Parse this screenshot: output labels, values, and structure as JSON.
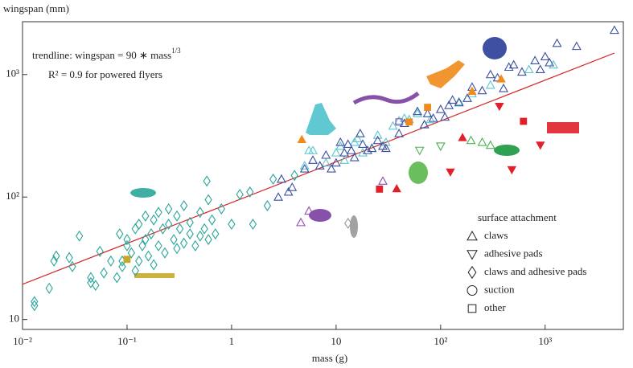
{
  "chart_data": {
    "type": "scatter",
    "y_label": "wingspan (mm)",
    "x_label": "mass (g)",
    "log_x": true,
    "log_y": true,
    "xlim": [
      0.01,
      5600
    ],
    "ylim": [
      8.3,
      2700
    ],
    "xticks": [
      {
        "value": 0.01,
        "label": "10⁻²"
      },
      {
        "value": 0.1,
        "label": "10⁻¹"
      },
      1,
      10,
      {
        "value": 100,
        "label": "10²"
      },
      {
        "value": 1000,
        "label": "10³"
      }
    ],
    "yticks": [
      10,
      {
        "value": 100,
        "label": "10²"
      },
      {
        "value": 1000,
        "label": "10³"
      }
    ],
    "trendline_label": "trendline: wingspan = 90 ∗ mass",
    "trendline_exponent": "1/3",
    "r2_label": "R² = 0.9 for powered flyers",
    "trendline": {
      "color": "#d62728",
      "x": [
        0.01,
        4600
      ],
      "values": [
        19.4,
        1497
      ]
    },
    "legend": {
      "title": "surface attachment",
      "entries": [
        {
          "label": "claws",
          "marker": "triangle"
        },
        {
          "label": "adhesive pads",
          "marker": "triangle-down"
        },
        {
          "label": "claws and adhesive pads",
          "marker": "diamond"
        },
        {
          "label": "suction",
          "marker": "circle"
        },
        {
          "label": "other",
          "marker": "square"
        }
      ]
    },
    "series": [
      {
        "marker": "diamond",
        "color": "#2aa59a",
        "filled": false,
        "x": [
          0.013,
          0.013,
          0.018,
          0.02,
          0.021,
          0.028,
          0.03,
          0.035,
          0.045,
          0.045,
          0.05,
          0.055,
          0.06,
          0.07,
          0.08,
          0.085,
          0.09,
          0.09,
          0.1,
          0.1,
          0.11,
          0.12,
          0.12,
          0.13,
          0.13,
          0.14,
          0.15,
          0.15,
          0.16,
          0.17,
          0.18,
          0.18,
          0.2,
          0.2,
          0.22,
          0.23,
          0.25,
          0.25,
          0.28,
          0.3,
          0.3,
          0.32,
          0.35,
          0.35,
          0.4,
          0.4,
          0.45,
          0.5,
          0.5,
          0.55,
          0.6,
          0.6,
          0.65,
          0.7,
          0.58,
          0.8,
          1,
          1.2,
          1.5,
          1.6,
          2.2,
          2.5,
          4
        ],
        "values": [
          13,
          14,
          18,
          30,
          33,
          32,
          27,
          48,
          20,
          22,
          19,
          36,
          24,
          30,
          22,
          50,
          27,
          30,
          40,
          45,
          35,
          25,
          55,
          30,
          60,
          40,
          45,
          70,
          33,
          50,
          28,
          65,
          40,
          75,
          55,
          35,
          60,
          80,
          45,
          38,
          70,
          55,
          42,
          85,
          50,
          62,
          40,
          48,
          75,
          55,
          45,
          95,
          65,
          50,
          135,
          80,
          60,
          105,
          110,
          60,
          85,
          140,
          150
        ]
      },
      {
        "marker": "triangle",
        "color": "#5cc8d0",
        "filled": false,
        "x": [
          5,
          5.5,
          6,
          8,
          10,
          11,
          12,
          15,
          16,
          18,
          22,
          25,
          30,
          35,
          40,
          45,
          50,
          60,
          70,
          80,
          150,
          200,
          300,
          700,
          1200
        ],
        "values": [
          180,
          240,
          240,
          190,
          230,
          260,
          200,
          280,
          300,
          230,
          250,
          320,
          280,
          380,
          420,
          440,
          430,
          480,
          390,
          430,
          600,
          700,
          820,
          1100,
          1200
        ]
      },
      {
        "marker": "triangle",
        "color": "#3b4fa0",
        "filled": false,
        "x": [
          2.8,
          3,
          3.5,
          3.8,
          5,
          6,
          7,
          8,
          9,
          10,
          11,
          12,
          13,
          14,
          15,
          17,
          18,
          20,
          22,
          25,
          28,
          30,
          40,
          45,
          60,
          70,
          75,
          85,
          100,
          110,
          120,
          130,
          150,
          180,
          200,
          250,
          300,
          350,
          400,
          450,
          500,
          600,
          800,
          900,
          1000,
          1100,
          1300,
          2000,
          4600
        ],
        "values": [
          100,
          140,
          110,
          120,
          170,
          200,
          180,
          220,
          170,
          190,
          280,
          230,
          270,
          240,
          210,
          330,
          270,
          240,
          250,
          290,
          260,
          250,
          330,
          400,
          500,
          390,
          480,
          440,
          520,
          450,
          560,
          620,
          590,
          640,
          790,
          740,
          1000,
          940,
          770,
          1150,
          1200,
          1050,
          1300,
          1100,
          1400,
          1250,
          1800,
          1700,
          2300
        ]
      },
      {
        "marker": "triangle",
        "color": "#8e4bb0",
        "filled": false,
        "x": [
          4.6,
          5.5,
          28
        ],
        "values": [
          62,
          77,
          135
        ]
      },
      {
        "marker": "diamond",
        "color": "#999999",
        "filled": false,
        "x": [
          13
        ],
        "values": [
          61
        ]
      },
      {
        "marker": "triangle",
        "color": "#f08a1a",
        "filled": true,
        "x": [
          4.7,
          200,
          380
        ],
        "values": [
          295,
          730,
          920
        ]
      },
      {
        "marker": "square",
        "color": "#f08a1a",
        "filled": true,
        "x": [
          75,
          50
        ],
        "values": [
          540,
          410
        ]
      },
      {
        "marker": "square",
        "color": "#8e4bb0",
        "filled": false,
        "x": [
          40
        ],
        "values": [
          410
        ]
      },
      {
        "marker": "square",
        "color": "#c8a82a",
        "filled": true,
        "x": [
          0.1
        ],
        "values": [
          31
        ]
      },
      {
        "marker": "triangle-down",
        "color": "#e0202a",
        "filled": true,
        "x": [
          124,
          900,
          480,
          365
        ],
        "values": [
          160,
          265,
          167,
          550
        ]
      },
      {
        "marker": "square",
        "color": "#e0202a",
        "filled": true,
        "x": [
          620,
          26
        ],
        "values": [
          415,
          116
        ]
      },
      {
        "marker": "triangle",
        "color": "#e0202a",
        "filled": true,
        "x": [
          38,
          162
        ],
        "values": [
          117,
          306
        ]
      },
      {
        "marker": "triangle-down",
        "color": "#4cb050",
        "filled": false,
        "x": [
          63,
          100
        ],
        "values": [
          240,
          260
        ]
      },
      {
        "marker": "triangle",
        "color": "#4cb050",
        "filled": false,
        "x": [
          195,
          250,
          300
        ],
        "values": [
          290,
          280,
          265
        ]
      }
    ]
  }
}
